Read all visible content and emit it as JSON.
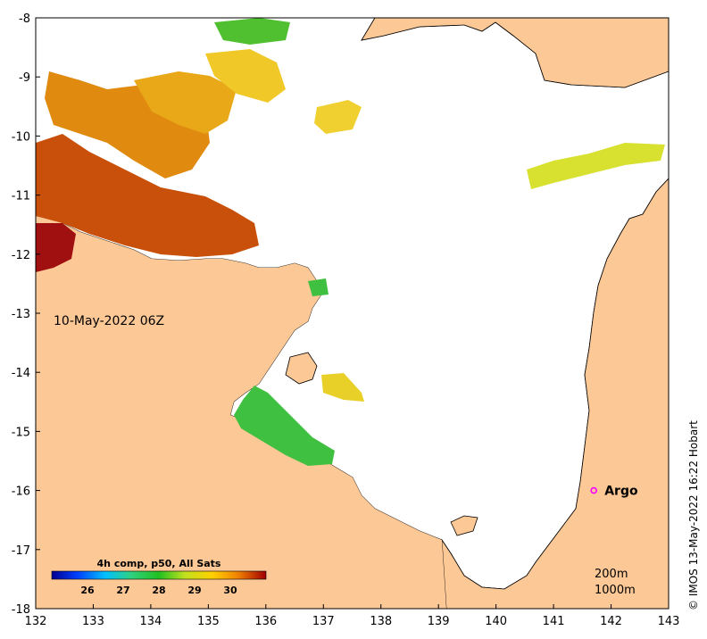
{
  "map": {
    "date_label": "10-May-2022 06Z",
    "x_range": [
      132,
      143
    ],
    "y_range": [
      -18,
      -8
    ],
    "x_ticks": [
      "132",
      "133",
      "134",
      "135",
      "136",
      "137",
      "138",
      "139",
      "140",
      "141",
      "142",
      "143"
    ],
    "y_ticks": [
      "-8",
      "-9",
      "-10",
      "-11",
      "-12",
      "-13",
      "-14",
      "-15",
      "-16",
      "-17",
      "-18"
    ],
    "colors": {
      "land": "#fcc896",
      "sea": "#ffffff",
      "coast": "#000000",
      "argo": "#ff00ff"
    }
  },
  "colorbar": {
    "title": "4h comp, p50, All Sats",
    "ticks": [
      "26",
      "27",
      "28",
      "29",
      "30"
    ]
  },
  "argo": {
    "label": "Argo",
    "lon": 141.7,
    "lat": -16.0
  },
  "contours": {
    "line1": "200m",
    "line2": "1000m"
  },
  "credit": "© IMOS 13-May-2022 16:22 Hobart"
}
